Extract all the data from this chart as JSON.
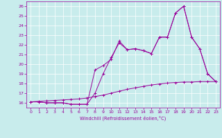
{
  "xlabel": "Windchill (Refroidissement éolien,°C)",
  "bg_color": "#c8ecec",
  "line_color": "#990099",
  "ylim": [
    15.5,
    26.5
  ],
  "xlim": [
    -0.5,
    23.5
  ],
  "yticks": [
    16,
    17,
    18,
    19,
    20,
    21,
    22,
    23,
    24,
    25,
    26
  ],
  "xticks": [
    0,
    1,
    2,
    3,
    4,
    5,
    6,
    7,
    8,
    9,
    10,
    11,
    12,
    13,
    14,
    15,
    16,
    17,
    18,
    19,
    20,
    21,
    22,
    23
  ],
  "line1_x": [
    0,
    1,
    2,
    3,
    4,
    5,
    6,
    7,
    8,
    9,
    10,
    11,
    12,
    13,
    14,
    15,
    16,
    17,
    18,
    19,
    20,
    21,
    22,
    23
  ],
  "line1_y": [
    16.1,
    16.1,
    16.0,
    16.0,
    16.0,
    15.85,
    15.85,
    15.85,
    17.0,
    19.0,
    20.7,
    22.2,
    21.5,
    21.6,
    21.4,
    21.1,
    22.8,
    22.8,
    25.3,
    26.0,
    22.8,
    21.6,
    19.0,
    18.2
  ],
  "line2_x": [
    0,
    1,
    2,
    3,
    4,
    5,
    6,
    7,
    8,
    9,
    10,
    11,
    12,
    13,
    14,
    15,
    16,
    17,
    18,
    19,
    20,
    21,
    22,
    23
  ],
  "line2_y": [
    16.1,
    16.1,
    16.0,
    16.0,
    16.0,
    15.85,
    15.85,
    15.85,
    19.4,
    19.85,
    20.5,
    22.4,
    21.5,
    21.6,
    21.4,
    21.1,
    22.8,
    22.8,
    25.3,
    26.0,
    22.8,
    21.6,
    19.0,
    18.2
  ],
  "line3_x": [
    0,
    1,
    2,
    3,
    4,
    5,
    6,
    7,
    8,
    9,
    10,
    11,
    12,
    13,
    14,
    15,
    16,
    17,
    18,
    19,
    20,
    21,
    22,
    23
  ],
  "line3_y": [
    16.1,
    16.15,
    16.2,
    16.25,
    16.3,
    16.35,
    16.4,
    16.5,
    16.65,
    16.8,
    17.0,
    17.2,
    17.4,
    17.55,
    17.7,
    17.85,
    17.95,
    18.05,
    18.1,
    18.15,
    18.15,
    18.2,
    18.2,
    18.2
  ]
}
